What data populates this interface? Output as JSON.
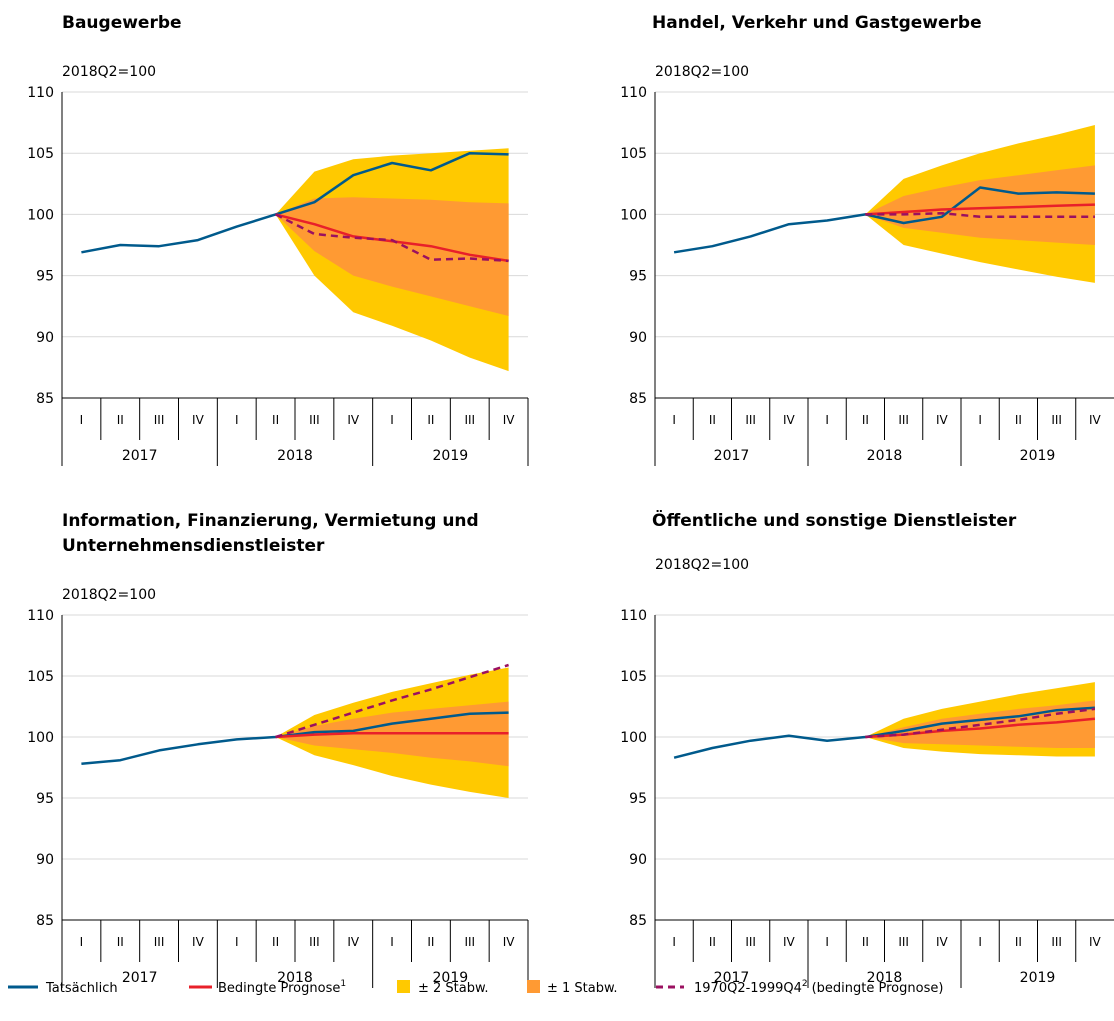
{
  "colors": {
    "actual": "#005a8c",
    "forecast": "#e8202a",
    "band2": "#ffc900",
    "band1": "#ff9a33",
    "alt": "#9b1060",
    "grid": "#d9d9d9",
    "axis": "#000000"
  },
  "legend": {
    "actual": "Tatsächlich",
    "forecast": "Bedingte Prognose",
    "forecast_sup": "1",
    "band2": "± 2 Stabw.",
    "band1": "± 1 Stabw.",
    "alt": "1970Q2-1999Q4",
    "alt_sup": "2",
    "alt_suffix": "(bedingte Prognose)"
  },
  "chart_data": [
    {
      "type": "line",
      "title": "Baugewerbe",
      "unit_label": "2018Q2=100",
      "ylim": [
        85,
        110
      ],
      "yticks": [
        85,
        90,
        95,
        100,
        105,
        110
      ],
      "quarters": [
        "I",
        "II",
        "III",
        "IV",
        "I",
        "II",
        "III",
        "IV",
        "I",
        "II",
        "III",
        "IV"
      ],
      "years": [
        "2017",
        "2018",
        "2019"
      ],
      "actual": [
        96.9,
        97.5,
        97.4,
        97.9,
        99.0,
        100.0,
        101.0,
        103.2,
        104.2,
        103.6,
        105.0,
        104.9
      ],
      "forecast": [
        null,
        null,
        null,
        null,
        null,
        100.0,
        99.2,
        98.2,
        97.8,
        97.4,
        96.7,
        96.2
      ],
      "alt": [
        null,
        null,
        null,
        null,
        null,
        100.0,
        98.4,
        98.1,
        97.9,
        96.3,
        96.4,
        96.2
      ],
      "band2": {
        "upper": [
          null,
          null,
          null,
          null,
          null,
          100.0,
          103.5,
          104.5,
          104.8,
          105.0,
          105.2,
          105.4
        ],
        "lower": [
          null,
          null,
          null,
          null,
          null,
          100.0,
          95.0,
          92.0,
          90.9,
          89.7,
          88.3,
          87.2
        ]
      },
      "band1": {
        "upper": [
          null,
          null,
          null,
          null,
          null,
          100.0,
          101.3,
          101.4,
          101.3,
          101.2,
          101.0,
          100.9
        ],
        "lower": [
          null,
          null,
          null,
          null,
          null,
          100.0,
          97.0,
          95.0,
          94.1,
          93.3,
          92.5,
          91.7
        ]
      }
    },
    {
      "type": "line",
      "title": "Handel, Verkehr und Gastgewerbe",
      "unit_label": "2018Q2=100",
      "ylim": [
        85,
        110
      ],
      "yticks": [
        85,
        90,
        95,
        100,
        105,
        110
      ],
      "quarters": [
        "I",
        "II",
        "III",
        "IV",
        "I",
        "II",
        "III",
        "IV",
        "I",
        "II",
        "III",
        "IV"
      ],
      "years": [
        "2017",
        "2018",
        "2019"
      ],
      "actual": [
        96.9,
        97.4,
        98.2,
        99.2,
        99.5,
        100.0,
        99.3,
        99.8,
        102.2,
        101.7,
        101.8,
        101.7
      ],
      "forecast": [
        null,
        null,
        null,
        null,
        null,
        100.0,
        100.2,
        100.4,
        100.5,
        100.6,
        100.7,
        100.8
      ],
      "alt": [
        null,
        null,
        null,
        null,
        null,
        100.0,
        100.0,
        100.1,
        99.8,
        99.8,
        99.8,
        99.8
      ],
      "band2": {
        "upper": [
          null,
          null,
          null,
          null,
          null,
          100.0,
          102.9,
          104.0,
          105.0,
          105.8,
          106.5,
          107.3
        ],
        "lower": [
          null,
          null,
          null,
          null,
          null,
          100.0,
          97.5,
          96.8,
          96.1,
          95.5,
          94.9,
          94.4
        ]
      },
      "band1": {
        "upper": [
          null,
          null,
          null,
          null,
          null,
          100.0,
          101.5,
          102.2,
          102.8,
          103.2,
          103.6,
          104.0
        ],
        "lower": [
          null,
          null,
          null,
          null,
          null,
          100.0,
          98.9,
          98.5,
          98.1,
          97.9,
          97.7,
          97.5
        ]
      }
    },
    {
      "type": "line",
      "title": "Information, Finanzierung, Vermietung und",
      "title2": "Unternehmensdienstleister",
      "unit_label": "2018Q2=100",
      "ylim": [
        85,
        110
      ],
      "yticks": [
        85,
        90,
        95,
        100,
        105,
        110
      ],
      "quarters": [
        "I",
        "II",
        "III",
        "IV",
        "I",
        "II",
        "III",
        "IV",
        "I",
        "II",
        "III",
        "IV"
      ],
      "years": [
        "2017",
        "2018",
        "2019"
      ],
      "actual": [
        97.8,
        98.1,
        98.9,
        99.4,
        99.8,
        100.0,
        100.4,
        100.5,
        101.1,
        101.5,
        101.9,
        102.0
      ],
      "forecast": [
        null,
        null,
        null,
        null,
        null,
        100.0,
        100.2,
        100.3,
        100.3,
        100.3,
        100.3,
        100.3
      ],
      "alt": [
        null,
        null,
        null,
        null,
        null,
        100.0,
        101.0,
        102.0,
        103.0,
        103.9,
        104.9,
        105.9
      ],
      "band2": {
        "upper": [
          null,
          null,
          null,
          null,
          null,
          100.0,
          101.8,
          102.8,
          103.7,
          104.4,
          105.1,
          105.7
        ],
        "lower": [
          null,
          null,
          null,
          null,
          null,
          100.0,
          98.5,
          97.7,
          96.8,
          96.1,
          95.5,
          95.0
        ]
      },
      "band1": {
        "upper": [
          null,
          null,
          null,
          null,
          null,
          100.0,
          100.9,
          101.5,
          102.0,
          102.3,
          102.6,
          102.9
        ],
        "lower": [
          null,
          null,
          null,
          null,
          null,
          100.0,
          99.3,
          99.0,
          98.7,
          98.3,
          98.0,
          97.6
        ]
      }
    },
    {
      "type": "line",
      "title": "Öffentliche und sonstige Dienstleister",
      "unit_label": "2018Q2=100",
      "ylim": [
        85,
        110
      ],
      "yticks": [
        85,
        90,
        95,
        100,
        105,
        110
      ],
      "quarters": [
        "I",
        "II",
        "III",
        "IV",
        "I",
        "II",
        "III",
        "IV",
        "I",
        "II",
        "III",
        "IV"
      ],
      "years": [
        "2017",
        "2018",
        "2019"
      ],
      "actual": [
        98.3,
        99.1,
        99.7,
        100.1,
        99.7,
        100.0,
        100.5,
        101.1,
        101.4,
        101.7,
        102.2,
        102.4
      ],
      "forecast": [
        null,
        null,
        null,
        null,
        null,
        100.0,
        100.2,
        100.5,
        100.7,
        101.0,
        101.2,
        101.5
      ],
      "alt": [
        null,
        null,
        null,
        null,
        null,
        100.0,
        100.2,
        100.6,
        101.0,
        101.4,
        101.9,
        102.3
      ],
      "band2": {
        "upper": [
          null,
          null,
          null,
          null,
          null,
          100.0,
          101.5,
          102.3,
          102.9,
          103.5,
          104.0,
          104.5
        ],
        "lower": [
          null,
          null,
          null,
          null,
          null,
          100.0,
          99.1,
          98.8,
          98.6,
          98.5,
          98.4,
          98.4
        ]
      },
      "band1": {
        "upper": [
          null,
          null,
          null,
          null,
          null,
          100.0,
          100.8,
          101.5,
          101.9,
          102.3,
          102.6,
          103.0
        ],
        "lower": [
          null,
          null,
          null,
          null,
          null,
          100.0,
          99.5,
          99.4,
          99.3,
          99.2,
          99.1,
          99.1
        ]
      }
    }
  ]
}
